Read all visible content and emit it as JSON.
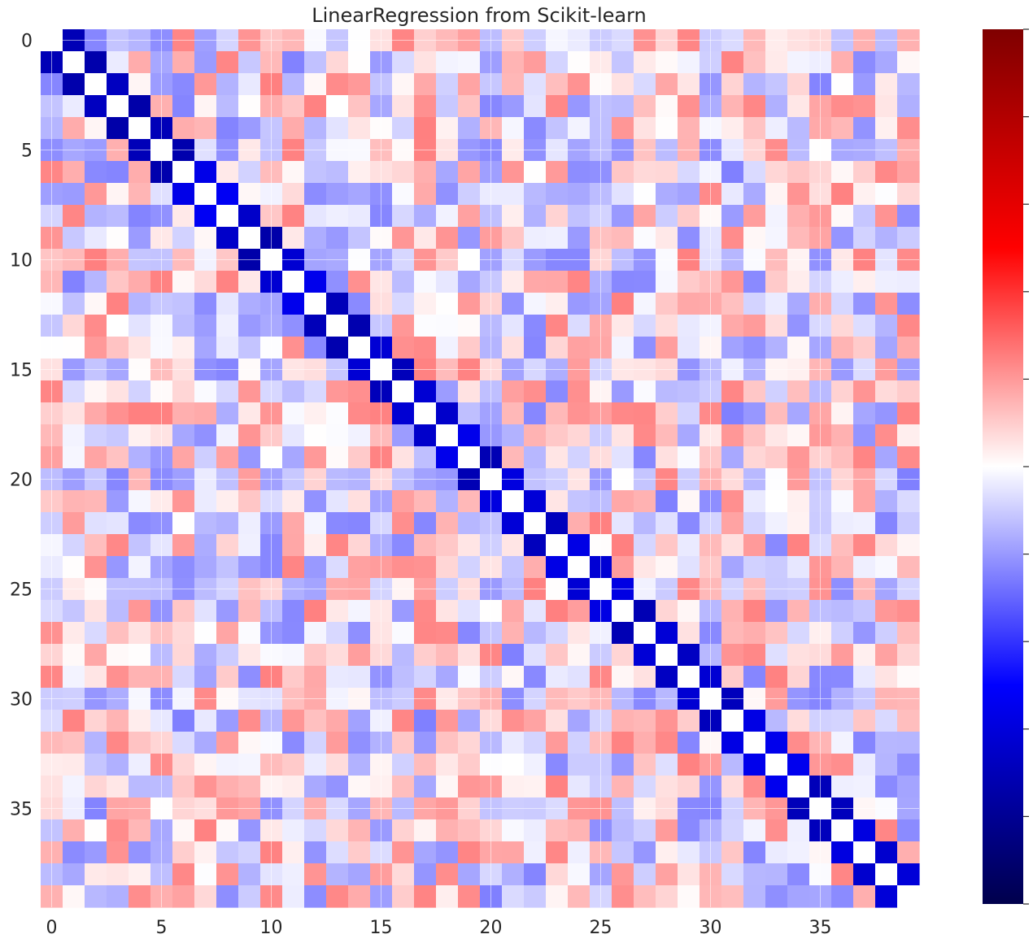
{
  "chart_data": {
    "type": "heatmap",
    "title": "LinearRegression from Scikit-learn",
    "n": 40,
    "x_ticks": [
      0,
      5,
      10,
      15,
      20,
      25,
      30,
      35
    ],
    "y_ticks": [
      0,
      5,
      10,
      15,
      20,
      25,
      30,
      35
    ],
    "colormap": "seismic",
    "colorbar_range": [
      -1,
      1
    ],
    "colorbar_ticks_labeled": false,
    "diagonal_value": 0.0,
    "adjacent_value_range": [
      -0.75,
      -0.5
    ],
    "off_diagonal_value_range": [
      -0.25,
      0.25
    ],
    "colors": {
      "negative_extreme": "#00004c",
      "blue": "#0000ff",
      "white": "#ffffff",
      "red": "#ff0000",
      "positive_extreme": "#7f0000"
    }
  }
}
